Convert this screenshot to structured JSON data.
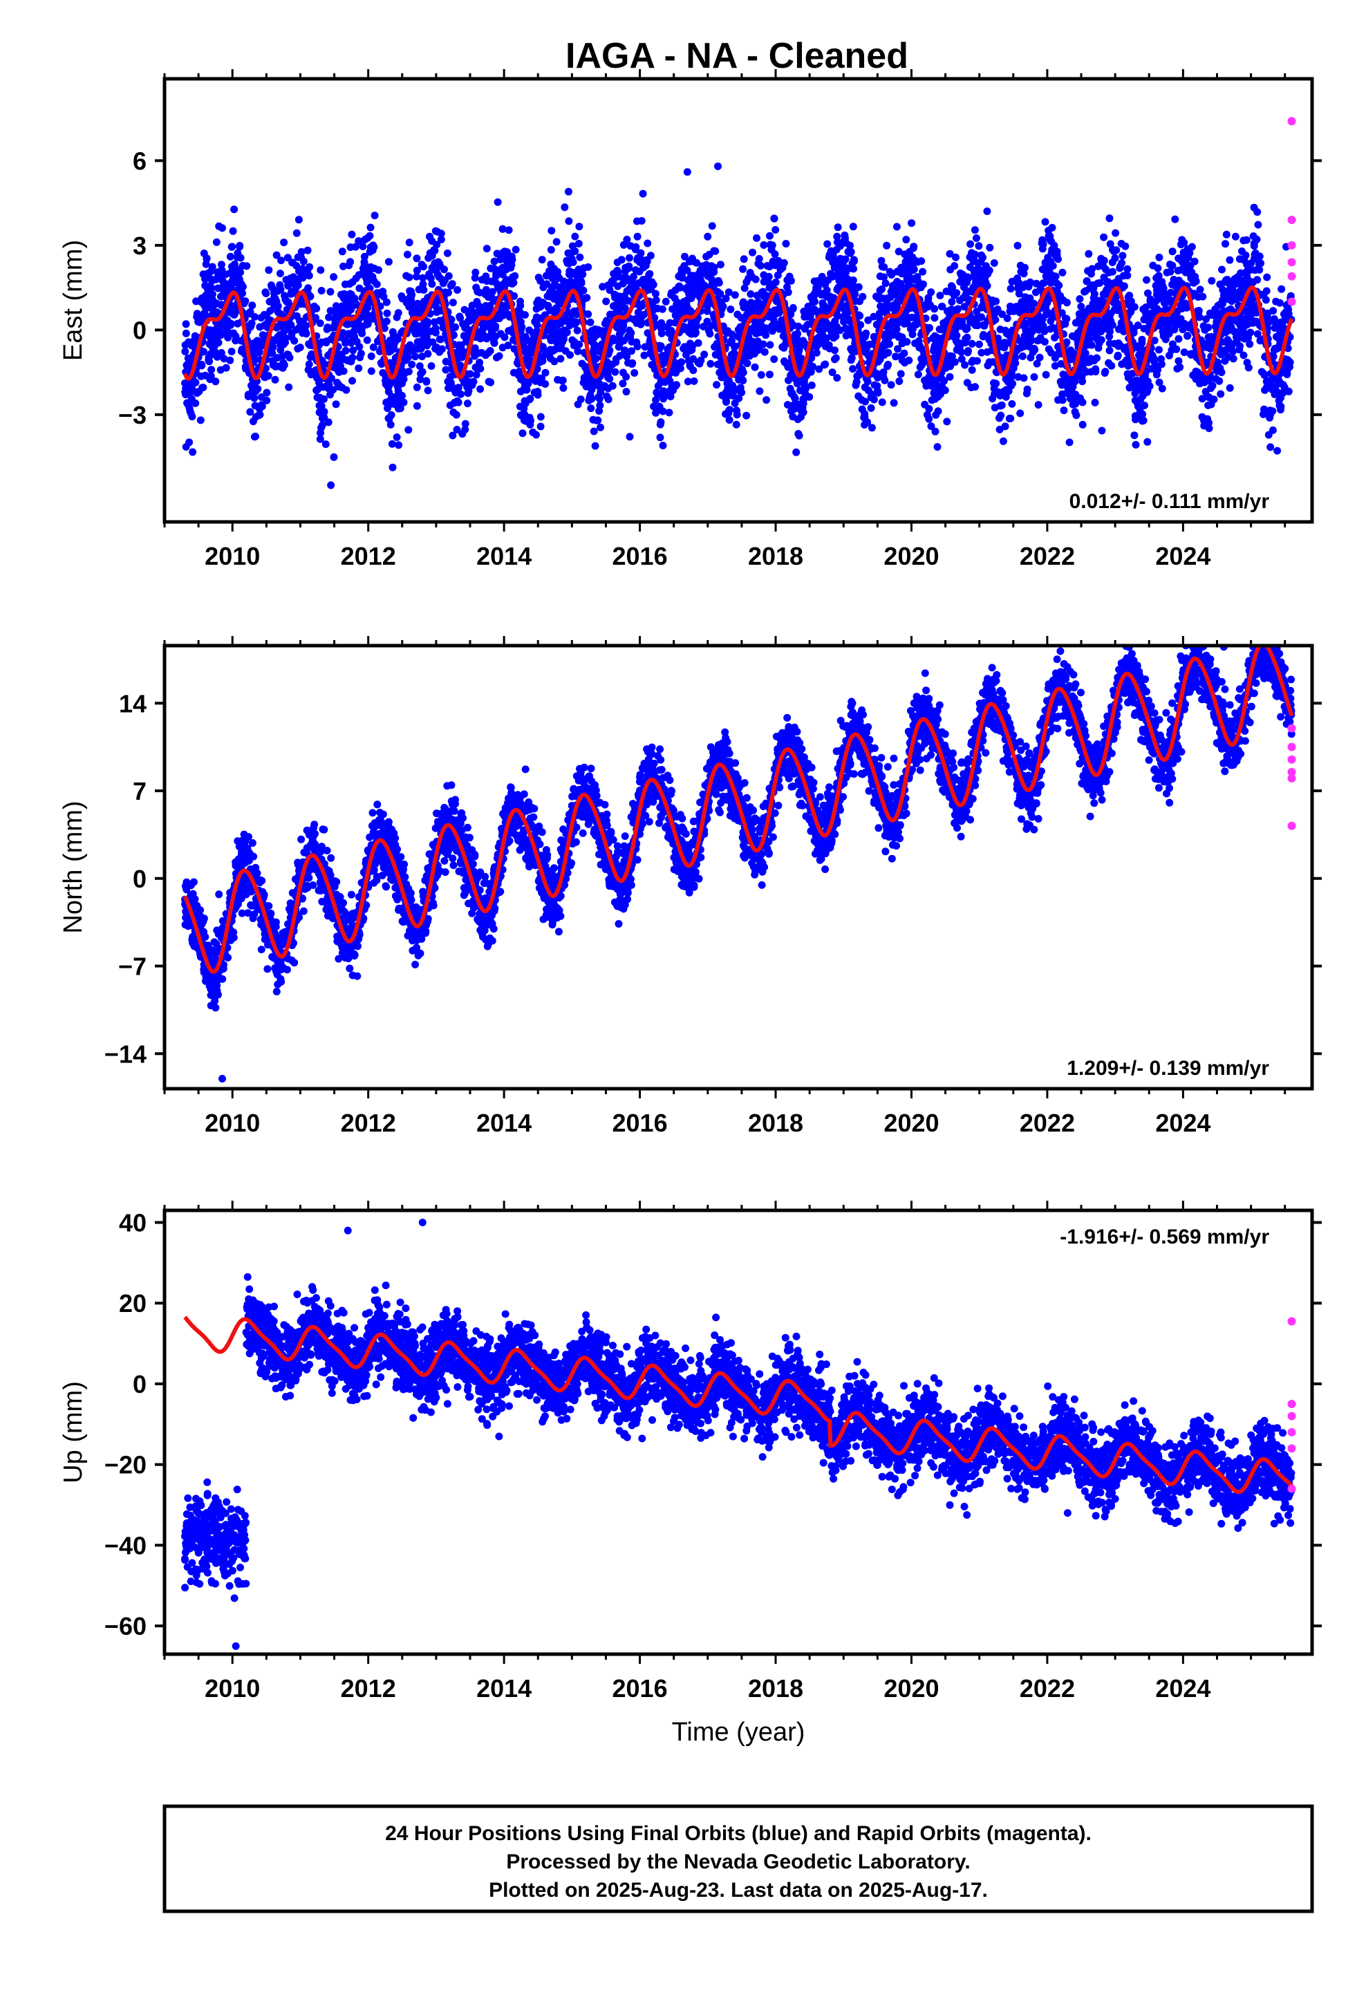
{
  "title": "IAGA  - NA - Cleaned",
  "chart_data": [
    {
      "type": "scatter",
      "ylabel": "East (mm)",
      "xlabel": "",
      "xlim": [
        2009.0,
        2025.9
      ],
      "ylim": [
        -6.8,
        8.9
      ],
      "yticks": [
        -3,
        0,
        3,
        6
      ],
      "xticks": [
        2010,
        2012,
        2014,
        2016,
        2018,
        2020,
        2022,
        2024
      ],
      "rate_text": "0.012+/- 0.111 mm/yr",
      "rate_position": "bottom-right",
      "model": {
        "start": 2009.3,
        "end": 2025.6,
        "offset": 0.0,
        "slope": 0.012,
        "annual_amp": 1.2,
        "annual_phase": 2.2,
        "semi_amp": 0.6,
        "semi_phase": 0.6
      },
      "scatter_noise": 1.1,
      "extremes": [
        [
          2011.45,
          -5.5
        ],
        [
          2017.15,
          5.8
        ],
        [
          2016.7,
          5.6
        ],
        [
          2014.95,
          4.9
        ]
      ],
      "rapid_points": [
        [
          2025.6,
          7.4
        ],
        [
          2025.6,
          3.9
        ],
        [
          2025.6,
          3.0
        ],
        [
          2025.6,
          2.4
        ],
        [
          2025.6,
          1.9
        ],
        [
          2025.6,
          1.0
        ]
      ]
    },
    {
      "type": "scatter",
      "ylabel": "North (mm)",
      "xlabel": "",
      "xlim": [
        2009.0,
        2025.9
      ],
      "ylim": [
        -16.8,
        18.6
      ],
      "yticks": [
        -14,
        -7,
        0,
        7,
        14
      ],
      "xticks": [
        2010,
        2012,
        2014,
        2016,
        2018,
        2020,
        2022,
        2024
      ],
      "rate_text": "1.209+/- 0.139 mm/yr",
      "rate_position": "bottom-right",
      "model": {
        "start": 2009.3,
        "end": 2025.6,
        "offset": -3.2,
        "slope": 1.209,
        "annual_amp": 3.7,
        "annual_phase": 0.3,
        "semi_amp": 0.4,
        "semi_phase": 1.0
      },
      "scatter_noise": 1.3,
      "extremes": [
        [
          2009.85,
          -16.0
        ],
        [
          2024.6,
          18.5
        ]
      ],
      "rapid_points": [
        [
          2025.6,
          12.0
        ],
        [
          2025.6,
          10.5
        ],
        [
          2025.6,
          9.5
        ],
        [
          2025.6,
          8.5
        ],
        [
          2025.6,
          8.0
        ],
        [
          2025.6,
          4.2
        ]
      ]
    },
    {
      "type": "scatter",
      "ylabel": "Up (mm)",
      "xlabel": "Time (year)",
      "xlim": [
        2009.0,
        2025.9
      ],
      "ylim": [
        -67,
        43
      ],
      "yticks": [
        -60,
        -40,
        -20,
        0,
        20,
        40
      ],
      "xticks": [
        2010,
        2012,
        2014,
        2016,
        2018,
        2020,
        2022,
        2024
      ],
      "rate_text": "-1.916+/- 0.569 mm/yr",
      "rate_position": "top-right",
      "model": {
        "start": 2009.3,
        "end": 2025.6,
        "offset": 12.0,
        "slope": -1.916,
        "annual_amp": 4.0,
        "annual_phase": 0.0,
        "semi_amp": 1.0,
        "semi_phase": 0.0,
        "step_year": 2018.8,
        "step_size": -6.0
      },
      "scatter_noise": 4.5,
      "early_cluster": {
        "start": 2009.3,
        "end": 2010.2,
        "center": -38,
        "noise": 5
      },
      "extremes": [
        [
          2012.8,
          40.0
        ],
        [
          2011.7,
          38.0
        ],
        [
          2010.05,
          -65.0
        ],
        [
          2022.3,
          -32.0
        ]
      ],
      "rapid_points": [
        [
          2025.6,
          15.5
        ],
        [
          2025.6,
          -5.0
        ],
        [
          2025.6,
          -8.0
        ],
        [
          2025.6,
          -12.0
        ],
        [
          2025.6,
          -16.0
        ],
        [
          2025.6,
          -26.0
        ]
      ]
    }
  ],
  "caption": {
    "line1": "24 Hour Positions Using Final Orbits (blue) and Rapid Orbits (magenta).",
    "line2": "Processed by the Nevada Geodetic Laboratory.",
    "line3": "Plotted on 2025-Aug-23. Last data on 2025-Aug-17."
  },
  "colors": {
    "final_orbits": "#0000ff",
    "rapid_orbits": "#ff33ff",
    "model": "#ee1111",
    "frame": "#000000"
  }
}
